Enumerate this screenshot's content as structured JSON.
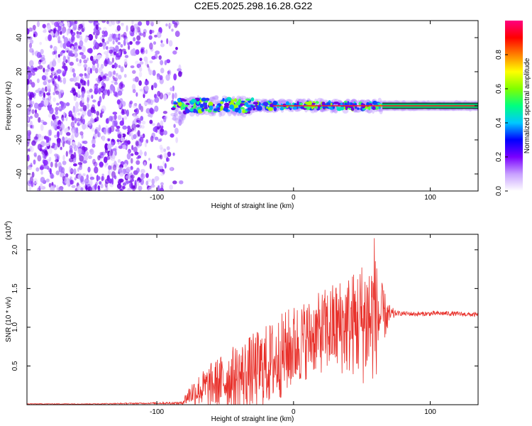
{
  "title": "C2E5.2025.298.16.28.G22",
  "chart_data": [
    {
      "type": "heatmap",
      "name": "spectrogram",
      "xlabel": "Height of straight line (km)",
      "ylabel": "Frequency (Hz)",
      "xlim": [
        -195,
        135
      ],
      "ylim": [
        -50,
        50
      ],
      "x_ticks": [
        -100,
        0,
        100
      ],
      "x_tick_labels": [
        "-100",
        "0",
        "100"
      ],
      "y_ticks": [
        -40,
        -20,
        0,
        20,
        40
      ],
      "y_tick_labels": [
        "-40",
        "-20",
        "0",
        "20",
        "40"
      ],
      "noise_region_km": [
        -195,
        -82
      ],
      "signal_start_km": -88,
      "steady_tone_start_km": 65,
      "tone_frequency_hz": 0,
      "colorbar": {
        "label": "Normalized spectral amplitude",
        "range": [
          0,
          1
        ],
        "ticks": [
          0.0,
          0.2,
          0.4,
          0.6,
          0.8
        ],
        "tick_labels": [
          "0.0",
          "0.2",
          "0.4",
          "0.6",
          "0.8"
        ],
        "colors": [
          "#ffffff",
          "#c8a0ff",
          "#7a00ff",
          "#0000ff",
          "#00c8ff",
          "#00ff80",
          "#80ff00",
          "#ffff00",
          "#ff8000",
          "#ff0000",
          "#ff0080"
        ]
      }
    },
    {
      "type": "line",
      "name": "snr",
      "xlabel": "Height of straight line (km)",
      "ylabel": "SNR (10 * v/v)",
      "scale_label": "(x10",
      "scale_exponent": "4",
      "xlim": [
        -195,
        135
      ],
      "ylim": [
        0,
        2.2
      ],
      "x_ticks": [
        -100,
        0,
        100
      ],
      "x_tick_labels": [
        "-100",
        "0",
        "100"
      ],
      "y_ticks": [
        0.5,
        1.0,
        1.5,
        2.0
      ],
      "y_tick_labels": [
        "0.5",
        "1.0",
        "1.5",
        "2.0"
      ],
      "line_color": "#e8302a",
      "envelope": {
        "x": [
          -195,
          -150,
          -100,
          -82,
          -75,
          -60,
          -45,
          -30,
          -15,
          0,
          15,
          30,
          45,
          55,
          60,
          65,
          70,
          75,
          90,
          110,
          135
        ],
        "mean": [
          0.01,
          0.01,
          0.02,
          0.02,
          0.15,
          0.25,
          0.35,
          0.42,
          0.55,
          0.75,
          0.9,
          1.0,
          1.05,
          1.1,
          1.12,
          1.15,
          1.15,
          1.18,
          1.17,
          1.18,
          1.16
        ],
        "amp": [
          0.005,
          0.005,
          0.01,
          0.02,
          0.15,
          0.3,
          0.4,
          0.5,
          0.55,
          0.55,
          0.5,
          0.6,
          0.7,
          0.9,
          0.8,
          0.4,
          0.15,
          0.03,
          0.03,
          0.03,
          0.03
        ]
      },
      "peak": {
        "x": 59,
        "y": 2.15
      }
    }
  ]
}
